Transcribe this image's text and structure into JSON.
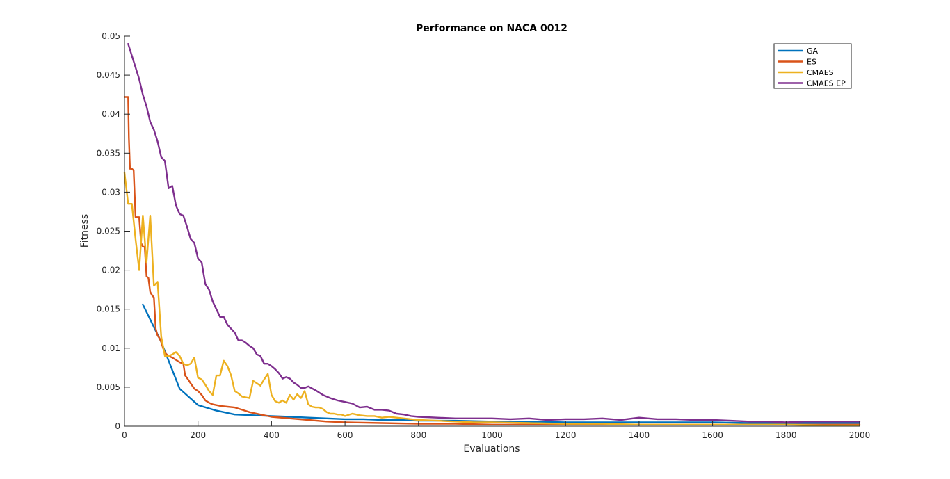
{
  "chart_data": {
    "type": "line",
    "title": "Performance on NACA 0012",
    "xlabel": "Evaluations",
    "ylabel": "Fitness",
    "xlim": [
      0,
      2000
    ],
    "ylim": [
      0,
      0.05
    ],
    "xticks": [
      0,
      200,
      400,
      600,
      800,
      1000,
      1200,
      1400,
      1600,
      1800,
      2000
    ],
    "xtick_labels": [
      "0",
      "200",
      "400",
      "600",
      "800",
      "1000",
      "1200",
      "1400",
      "1600",
      "1800",
      "2000"
    ],
    "yticks": [
      0,
      0.005,
      0.01,
      0.015,
      0.02,
      0.025,
      0.03,
      0.035,
      0.04,
      0.045,
      0.05
    ],
    "ytick_labels": [
      "0",
      "0.005",
      "0.01",
      "0.015",
      "0.02",
      "0.025",
      "0.03",
      "0.035",
      "0.04",
      "0.045",
      "0.05"
    ],
    "grid": false,
    "legend_position": "top-right",
    "series": [
      {
        "name": "GA",
        "color": "#0072BD",
        "x": [
          50,
          100,
          150,
          200,
          250,
          300,
          350,
          400,
          450,
          500,
          550,
          600,
          650,
          700,
          750,
          800,
          850,
          900,
          1000,
          1100,
          1200,
          1300,
          1400,
          1500,
          1600,
          1700,
          1800,
          1900,
          2000
        ],
        "y": [
          0.0156,
          0.0108,
          0.0048,
          0.0027,
          0.002,
          0.0015,
          0.0014,
          0.0013,
          0.0012,
          0.0011,
          0.001,
          0.0009,
          0.0009,
          0.0008,
          0.0008,
          0.0007,
          0.0007,
          0.0007,
          0.0006,
          0.0006,
          0.0005,
          0.0005,
          0.0005,
          0.0005,
          0.0005,
          0.0004,
          0.0004,
          0.0004,
          0.0004
        ]
      },
      {
        "name": "ES",
        "color": "#D95319",
        "x": [
          0,
          10,
          12,
          15,
          20,
          25,
          30,
          40,
          45,
          50,
          55,
          60,
          65,
          70,
          75,
          80,
          85,
          90,
          95,
          100,
          105,
          110,
          120,
          130,
          140,
          150,
          160,
          165,
          170,
          180,
          190,
          200,
          210,
          220,
          230,
          240,
          260,
          280,
          300,
          320,
          340,
          360,
          380,
          400,
          450,
          500,
          550,
          600,
          700,
          800,
          900,
          1000,
          1200,
          1400,
          1600,
          1800,
          2000
        ],
        "y": [
          0.0422,
          0.0422,
          0.037,
          0.033,
          0.033,
          0.0328,
          0.0268,
          0.0268,
          0.0235,
          0.023,
          0.023,
          0.0192,
          0.019,
          0.0172,
          0.0168,
          0.0165,
          0.0125,
          0.0116,
          0.0113,
          0.0108,
          0.01,
          0.0094,
          0.009,
          0.0088,
          0.0085,
          0.0082,
          0.008,
          0.0065,
          0.0062,
          0.0055,
          0.0048,
          0.0045,
          0.004,
          0.0033,
          0.003,
          0.0028,
          0.0026,
          0.0025,
          0.0024,
          0.0021,
          0.0018,
          0.0016,
          0.0014,
          0.0012,
          0.001,
          0.0008,
          0.0006,
          0.0005,
          0.0004,
          0.0003,
          0.0003,
          0.0002,
          0.0002,
          0.0002,
          0.0002,
          0.0002,
          0.0002
        ]
      },
      {
        "name": "CMAES",
        "color": "#EDB120",
        "x": [
          0,
          10,
          20,
          30,
          40,
          50,
          60,
          70,
          80,
          90,
          100,
          110,
          120,
          130,
          140,
          150,
          160,
          170,
          180,
          190,
          200,
          210,
          220,
          230,
          240,
          250,
          260,
          270,
          280,
          290,
          300,
          310,
          320,
          330,
          340,
          350,
          360,
          370,
          380,
          390,
          400,
          410,
          420,
          430,
          440,
          450,
          460,
          470,
          480,
          490,
          500,
          510,
          520,
          530,
          540,
          550,
          560,
          570,
          580,
          590,
          600,
          620,
          640,
          660,
          680,
          700,
          720,
          740,
          760,
          780,
          800,
          850,
          900,
          950,
          1000,
          1100,
          1200,
          1300,
          1400,
          1500,
          1600,
          1700,
          1800,
          1900,
          2000
        ],
        "y": [
          0.0325,
          0.0285,
          0.0285,
          0.024,
          0.02,
          0.027,
          0.021,
          0.027,
          0.018,
          0.0185,
          0.0115,
          0.009,
          0.009,
          0.0092,
          0.0095,
          0.009,
          0.008,
          0.0078,
          0.008,
          0.0088,
          0.0062,
          0.006,
          0.0053,
          0.0045,
          0.004,
          0.0065,
          0.0065,
          0.0084,
          0.0077,
          0.0065,
          0.0045,
          0.0042,
          0.0038,
          0.0037,
          0.0036,
          0.0058,
          0.0055,
          0.0052,
          0.006,
          0.0067,
          0.004,
          0.0032,
          0.003,
          0.0033,
          0.003,
          0.004,
          0.0034,
          0.0041,
          0.0036,
          0.0045,
          0.0028,
          0.0025,
          0.0024,
          0.0024,
          0.0022,
          0.0018,
          0.0016,
          0.0016,
          0.0015,
          0.0015,
          0.0013,
          0.0016,
          0.0014,
          0.0013,
          0.0013,
          0.0011,
          0.0012,
          0.0011,
          0.001,
          0.0009,
          0.0008,
          0.0007,
          0.0006,
          0.0005,
          0.0005,
          0.0004,
          0.0003,
          0.0003,
          0.0002,
          0.0002,
          0.0002,
          0.0002,
          0.0002,
          0.0001,
          0.0001
        ]
      },
      {
        "name": "CMAES EP",
        "color": "#7E2F8E",
        "x": [
          10,
          20,
          30,
          40,
          50,
          60,
          70,
          80,
          90,
          100,
          110,
          120,
          130,
          140,
          150,
          160,
          170,
          180,
          190,
          200,
          210,
          220,
          230,
          240,
          250,
          260,
          270,
          280,
          290,
          300,
          310,
          320,
          330,
          340,
          350,
          360,
          370,
          380,
          390,
          400,
          410,
          420,
          430,
          440,
          450,
          460,
          470,
          480,
          490,
          500,
          520,
          540,
          560,
          580,
          600,
          620,
          640,
          660,
          680,
          700,
          720,
          740,
          760,
          780,
          800,
          850,
          900,
          950,
          1000,
          1050,
          1100,
          1150,
          1200,
          1250,
          1300,
          1350,
          1400,
          1450,
          1500,
          1550,
          1600,
          1650,
          1700,
          1750,
          1800,
          1850,
          1900,
          1950,
          2000
        ],
        "y": [
          0.049,
          0.0475,
          0.046,
          0.0445,
          0.0425,
          0.041,
          0.039,
          0.038,
          0.0365,
          0.0345,
          0.034,
          0.0305,
          0.0308,
          0.0283,
          0.0272,
          0.027,
          0.0256,
          0.024,
          0.0235,
          0.0215,
          0.021,
          0.0182,
          0.0175,
          0.016,
          0.015,
          0.014,
          0.014,
          0.013,
          0.0125,
          0.012,
          0.011,
          0.011,
          0.0107,
          0.0103,
          0.01,
          0.0092,
          0.009,
          0.008,
          0.008,
          0.0077,
          0.0073,
          0.0068,
          0.0061,
          0.0063,
          0.0061,
          0.0056,
          0.0053,
          0.0049,
          0.0049,
          0.0051,
          0.0046,
          0.004,
          0.0036,
          0.0033,
          0.0031,
          0.0029,
          0.0024,
          0.0025,
          0.0021,
          0.0021,
          0.002,
          0.0016,
          0.0015,
          0.0013,
          0.0012,
          0.0011,
          0.001,
          0.001,
          0.001,
          0.0009,
          0.001,
          0.0008,
          0.0009,
          0.0009,
          0.001,
          0.0008,
          0.0011,
          0.0009,
          0.0009,
          0.0008,
          0.0008,
          0.0007,
          0.0006,
          0.0006,
          0.0005,
          0.0006,
          0.0006,
          0.0006,
          0.0006
        ]
      }
    ]
  }
}
